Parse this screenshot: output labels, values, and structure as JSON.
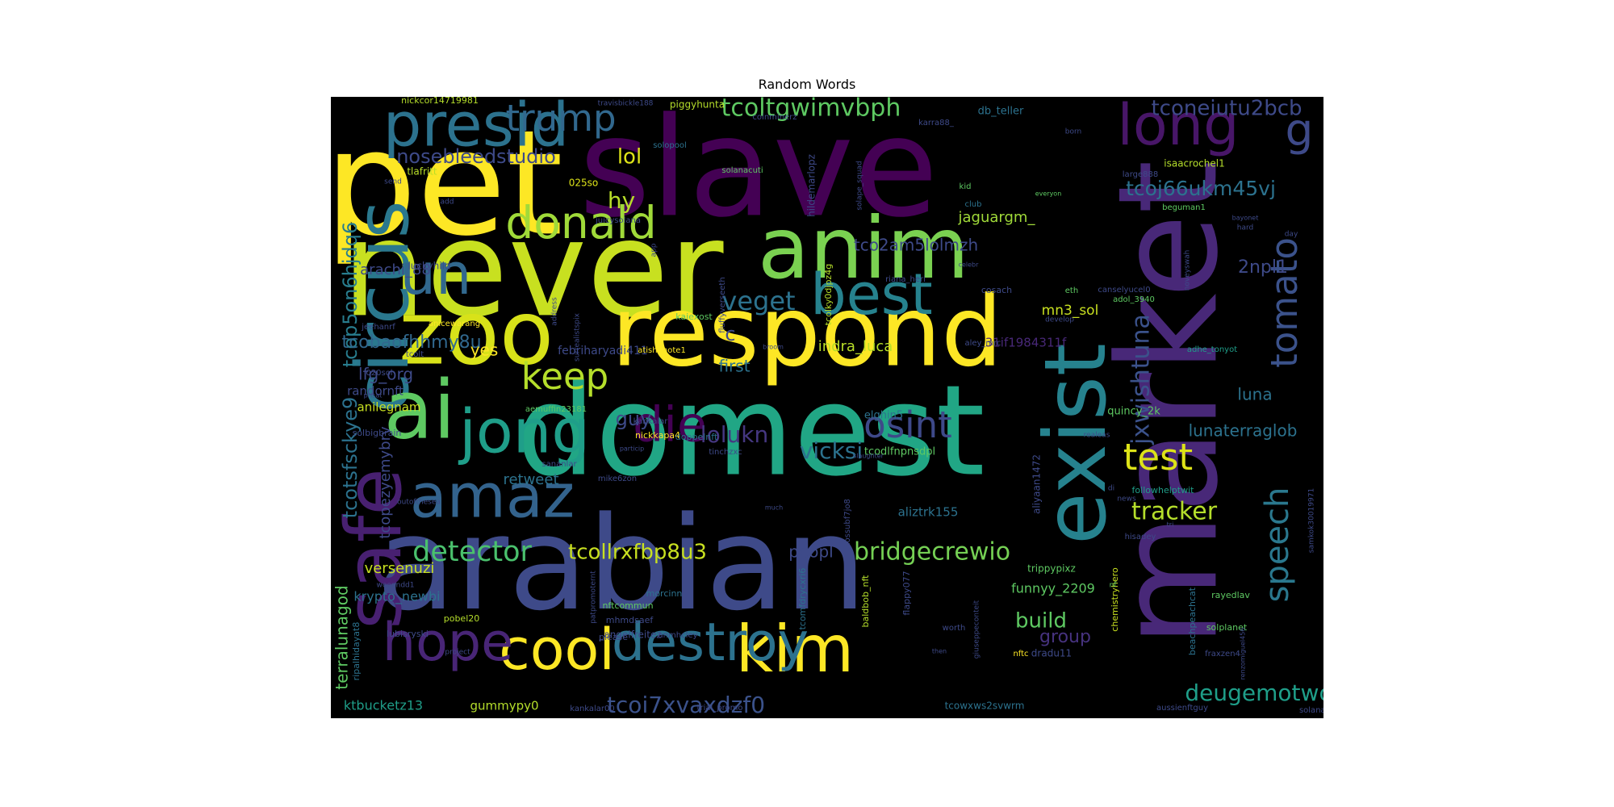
{
  "chart_data": {
    "type": "wordcloud",
    "title": "Random Words",
    "background": "#000000",
    "colormap": "viridis",
    "words": [
      {
        "text": "slave",
        "weight": 100,
        "color": "#440154"
      },
      {
        "text": "pet",
        "weight": 98,
        "color": "#fde725"
      },
      {
        "text": "never",
        "weight": 96,
        "color": "#c8e020"
      },
      {
        "text": "market",
        "weight": 95,
        "color": "#482878"
      },
      {
        "text": "domest",
        "weight": 94,
        "color": "#21a685"
      },
      {
        "text": "arabian",
        "weight": 93,
        "color": "#3e4a89"
      },
      {
        "text": "respond",
        "weight": 80,
        "color": "#fde725"
      },
      {
        "text": "zoo",
        "weight": 76,
        "color": "#d8e219"
      },
      {
        "text": "exist",
        "weight": 74,
        "color": "#26828e"
      },
      {
        "text": "anim",
        "weight": 70,
        "color": "#7ad151"
      },
      {
        "text": "circus",
        "weight": 68,
        "color": "#2a788e"
      },
      {
        "text": "ai",
        "weight": 66,
        "color": "#5ec962"
      },
      {
        "text": "safe",
        "weight": 64,
        "color": "#482071"
      },
      {
        "text": "presid",
        "weight": 60,
        "color": "#2c728e"
      },
      {
        "text": "amaz",
        "weight": 58,
        "color": "#33638d"
      },
      {
        "text": "cool",
        "weight": 56,
        "color": "#fde725"
      },
      {
        "text": "kim",
        "weight": 56,
        "color": "#fde725"
      },
      {
        "text": "destroy",
        "weight": 55,
        "color": "#2c728e"
      },
      {
        "text": "jong",
        "weight": 55,
        "color": "#1f9e89"
      },
      {
        "text": "long",
        "weight": 53,
        "color": "#481668"
      },
      {
        "text": "un",
        "weight": 50,
        "color": "#31688e"
      },
      {
        "text": "best",
        "weight": 50,
        "color": "#26828e"
      },
      {
        "text": "hope",
        "weight": 48,
        "color": "#482576"
      },
      {
        "text": "donald",
        "weight": 46,
        "color": "#a0da39"
      },
      {
        "text": "die",
        "weight": 46,
        "color": "#440154"
      },
      {
        "text": "trump",
        "weight": 42,
        "color": "#31688e"
      },
      {
        "text": "keep",
        "weight": 42,
        "color": "#b5de2b"
      },
      {
        "text": "test",
        "weight": 40,
        "color": "#dde318"
      },
      {
        "text": "tomato",
        "weight": 40,
        "color": "#3b528b"
      },
      {
        "text": "osint",
        "weight": 38,
        "color": "#3e4989"
      },
      {
        "text": "detector",
        "weight": 36,
        "color": "#4ac16d"
      },
      {
        "text": "speech",
        "weight": 36,
        "color": "#2a788e"
      },
      {
        "text": "jxwishtuna",
        "weight": 32,
        "color": "#3b528b"
      },
      {
        "text": "g",
        "weight": 36,
        "color": "#3e4a89"
      },
      {
        "text": "tcoltgwimvbph",
        "weight": 28,
        "color": "#5ec962"
      },
      {
        "text": "tconeiutu2bcb",
        "weight": 26,
        "color": "#3e4a89"
      },
      {
        "text": "tcoj66ukm45vj",
        "weight": 25,
        "color": "#2c728e"
      },
      {
        "text": "nosebleedstudio",
        "weight": 24,
        "color": "#3e4a89"
      },
      {
        "text": "veget",
        "weight": 28,
        "color": "#2c728e"
      },
      {
        "text": "lolukn",
        "weight": 26,
        "color": "#453781"
      },
      {
        "text": "vicksi",
        "weight": 26,
        "color": "#2c728e"
      },
      {
        "text": "bridgecrewio",
        "weight": 27,
        "color": "#75d054"
      },
      {
        "text": "tcoi7xvaxdzf0",
        "weight": 27,
        "color": "#3b528b"
      },
      {
        "text": "deugemotwo",
        "weight": 26,
        "color": "#1f9e89"
      },
      {
        "text": "tracker",
        "weight": 26,
        "color": "#b5de2b"
      },
      {
        "text": "tcollrxfbp8u3",
        "weight": 25,
        "color": "#c8e020"
      },
      {
        "text": "tcop5on6hjdq6",
        "weight": 24,
        "color": "#287d8e"
      },
      {
        "text": "tcotsfsckye9",
        "weight": 24,
        "color": "#2c728e"
      },
      {
        "text": "terralunagod",
        "weight": 20,
        "color": "#5ec962"
      },
      {
        "text": "lol",
        "weight": 24,
        "color": "#dde318"
      },
      {
        "text": "hy",
        "weight": 22,
        "color": "#b8de29"
      },
      {
        "text": "guy",
        "weight": 22,
        "color": "#3e4a89"
      },
      {
        "text": "build",
        "weight": 24,
        "color": "#5ec962"
      },
      {
        "text": "group",
        "weight": 20,
        "color": "#46327e"
      },
      {
        "text": "luna",
        "weight": 20,
        "color": "#2c728e"
      },
      {
        "text": "lunaterraglob",
        "weight": 20,
        "color": "#2c728e"
      },
      {
        "text": "2npl1",
        "weight": 20,
        "color": "#3e4a89"
      },
      {
        "text": "tco2am5lolmzh",
        "weight": 20,
        "color": "#3e4a89"
      },
      {
        "text": "jaguargm_",
        "weight": 18,
        "color": "#a0da39"
      },
      {
        "text": "tcobaofhhmy8u",
        "weight": 20,
        "color": "#31688e"
      },
      {
        "text": "arachi_88",
        "weight": 18,
        "color": "#3e4a89"
      },
      {
        "text": "lfg_org",
        "weight": 20,
        "color": "#3e4a89"
      },
      {
        "text": "retweet",
        "weight": 18,
        "color": "#2c728e"
      },
      {
        "text": "versenuzi",
        "weight": 18,
        "color": "#c8e020"
      },
      {
        "text": "tcopezyemybrv",
        "weight": 18,
        "color": "#3e4a89"
      },
      {
        "text": "peopl",
        "weight": 18,
        "color": "#3e4a89"
      },
      {
        "text": "first",
        "weight": 18,
        "color": "#2c728e"
      },
      {
        "text": "indra_luca",
        "weight": 17,
        "color": "#b8de29"
      },
      {
        "text": "mn3_sol",
        "weight": 17,
        "color": "#c8e020"
      },
      {
        "text": "funnyy_2209",
        "weight": 16,
        "color": "#5ec962"
      },
      {
        "text": "ktbucketz13",
        "weight": 16,
        "color": "#1f9e89"
      },
      {
        "text": "krypto_newbi",
        "weight": 16,
        "color": "#2c728e"
      },
      {
        "text": "gummypy0",
        "weight": 15,
        "color": "#b5de2b"
      },
      {
        "text": "yes",
        "weight": 17,
        "color": "#fde725"
      },
      {
        "text": "randornft",
        "weight": 15,
        "color": "#3e4a89"
      },
      {
        "text": "anilegnam",
        "weight": 15,
        "color": "#c8e020"
      },
      {
        "text": "febriharyadi411",
        "weight": 14,
        "color": "#3e4a89"
      },
      {
        "text": "31if1984311f",
        "weight": 15,
        "color": "#482878"
      },
      {
        "text": "aliztrk155",
        "weight": 15,
        "color": "#2c728e"
      },
      {
        "text": "quincy_2k",
        "weight": 13,
        "color": "#5ec962"
      },
      {
        "text": "elghin5",
        "weight": 13,
        "color": "#2c728e"
      },
      {
        "text": "tcodlfnpnsdpl",
        "weight": 13,
        "color": "#5ec962"
      },
      {
        "text": "piggyhunta",
        "weight": 12,
        "color": "#b5de2b"
      },
      {
        "text": "db_teller",
        "weight": 13,
        "color": "#2c728e"
      },
      {
        "text": "isaacrochel1",
        "weight": 12,
        "color": "#b5de2b"
      },
      {
        "text": "nickcor14719981",
        "weight": 11,
        "color": "#b5de2b"
      },
      {
        "text": "hildemarlopz",
        "weight": 12,
        "color": "#3e4a89"
      },
      {
        "text": "tlafritt",
        "weight": 12,
        "color": "#b8de29"
      },
      {
        "text": "luckyhild",
        "weight": 12,
        "color": "#3e4a89"
      },
      {
        "text": "025so",
        "weight": 12,
        "color": "#dde318"
      },
      {
        "text": "solbigbrain",
        "weight": 11,
        "color": "#3e4a89"
      },
      {
        "text": "nickkapa4",
        "weight": 11,
        "color": "#fde725"
      },
      {
        "text": "doppelnft",
        "weight": 11,
        "color": "#2c728e"
      },
      {
        "text": "speedbot",
        "weight": 0,
        "color": "#000000"
      },
      {
        "text": "aliyaan1472",
        "weight": 12,
        "color": "#3e4a89"
      },
      {
        "text": "followhelptwit",
        "weight": 11,
        "color": "#1f9e89"
      },
      {
        "text": "kaiexost",
        "weight": 11,
        "color": "#5ec962"
      },
      {
        "text": "anmhcley",
        "weight": 10,
        "color": "#3e4a89"
      },
      {
        "text": "_angelfreitez",
        "weight": 12,
        "color": "#3e4a89"
      },
      {
        "text": "morcinn",
        "weight": 11,
        "color": "#2c728e"
      },
      {
        "text": "nftcommun",
        "weight": 11,
        "color": "#5ec962"
      },
      {
        "text": "mhmdsaef",
        "weight": 11,
        "color": "#3e4a89"
      },
      {
        "text": "pobel20",
        "weight": 11,
        "color": "#b5de2b"
      },
      {
        "text": "lubisryski",
        "weight": 11,
        "color": "#3e4a89"
      },
      {
        "text": "please",
        "weight": 11,
        "color": "#3e4a89"
      },
      {
        "text": "kankalar00",
        "weight": 10,
        "color": "#3e4a89"
      },
      {
        "text": "trial_promo",
        "weight": 10,
        "color": "#3e4a89"
      },
      {
        "text": "tcowxws2svwrm",
        "weight": 12,
        "color": "#2c728e"
      },
      {
        "text": "trippypixz",
        "weight": 12,
        "color": "#5ec962"
      },
      {
        "text": "rayedlav",
        "weight": 11,
        "color": "#5ec962"
      },
      {
        "text": "solplanet",
        "weight": 11,
        "color": "#5ec962"
      },
      {
        "text": "fraxzen4",
        "weight": 10,
        "color": "#3e4a89"
      },
      {
        "text": "dradu11",
        "weight": 12,
        "color": "#3e4a89"
      },
      {
        "text": "nftc",
        "weight": 10,
        "color": "#fde725"
      },
      {
        "text": "worth",
        "weight": 10,
        "color": "#3e4a89"
      },
      {
        "text": "hisadey",
        "weight": 10,
        "color": "#3e4a89"
      },
      {
        "text": "aussienftguy",
        "weight": 10,
        "color": "#3e4a89"
      },
      {
        "text": "solanakiddo",
        "weight": 10,
        "color": "#3e4a89"
      },
      {
        "text": "baldbob_nft",
        "weight": 11,
        "color": "#b5de2b"
      },
      {
        "text": "flappy077",
        "weight": 11,
        "color": "#3e4a89"
      },
      {
        "text": "tcomfdrycxri6",
        "weight": 11,
        "color": "#2c728e"
      },
      {
        "text": "chemistryhero",
        "weight": 11,
        "color": "#c8e020"
      },
      {
        "text": "beachpeachcat",
        "weight": 11,
        "color": "#2c728e"
      },
      {
        "text": "ripalhidayat8",
        "weight": 11,
        "color": "#2c728e"
      },
      {
        "text": "cosach",
        "weight": 11,
        "color": "#3e4a89"
      },
      {
        "text": "canselyucel0",
        "weight": 10,
        "color": "#3e4a89"
      },
      {
        "text": "adol_3940",
        "weight": 10,
        "color": "#5ec962"
      },
      {
        "text": "adhe_tonyot",
        "weight": 10,
        "color": "#1f9e89"
      },
      {
        "text": "riana_heri",
        "weight": 10,
        "color": "#3e4a89"
      },
      {
        "text": "aley_mrc",
        "weight": 10,
        "color": "#3e4a89"
      },
      {
        "text": "atishdhote1",
        "weight": 10,
        "color": "#fde725"
      },
      {
        "text": "aemuffin23181",
        "weight": 10,
        "color": "#5ec962"
      },
      {
        "text": "kankalar",
        "weight": 10,
        "color": "#3e4a89"
      },
      {
        "text": "tinchzxc",
        "weight": 10,
        "color": "#3e4a89"
      },
      {
        "text": "sananlar",
        "weight": 10,
        "color": "#3e4a89"
      },
      {
        "text": "fluffyverseeth",
        "weight": 10,
        "color": "#3e4a89"
      },
      {
        "text": "tcolky0djpz4g",
        "weight": 11,
        "color": "#b5de2b"
      },
      {
        "text": "anicewarang",
        "weight": 10,
        "color": "#fde725"
      },
      {
        "text": "jeehanrf",
        "weight": 10,
        "color": "#3e4a89"
      },
      {
        "text": "tcolt",
        "weight": 10,
        "color": "#3e4a89"
      },
      {
        "text": "020sol",
        "weight": 10,
        "color": "#3e4a89"
      },
      {
        "text": "juicysolana",
        "weight": 10,
        "color": "#3e4a89"
      },
      {
        "text": "solopool",
        "weight": 10,
        "color": "#2c728e"
      },
      {
        "text": "solanacuti",
        "weight": 10,
        "color": "#5ec962"
      },
      {
        "text": "coinminerz",
        "weight": 10,
        "color": "#3e4a89"
      },
      {
        "text": "travisbickle188",
        "weight": 9,
        "color": "#3e4a89"
      },
      {
        "text": "karra88_",
        "weight": 10,
        "color": "#3e4a89"
      },
      {
        "text": "large888",
        "weight": 10,
        "color": "#3e4a89"
      },
      {
        "text": "beguman1",
        "weight": 10,
        "color": "#5ec962"
      },
      {
        "text": "kid",
        "weight": 10,
        "color": "#5ec962"
      },
      {
        "text": "club",
        "weight": 10,
        "color": "#2c728e"
      },
      {
        "text": "develop",
        "weight": 9,
        "color": "#3e4a89"
      },
      {
        "text": "eth",
        "weight": 10,
        "color": "#5ec962"
      },
      {
        "text": "news",
        "weight": 9,
        "color": "#3e4a89"
      },
      {
        "text": "di",
        "weight": 9,
        "color": "#3e4a89"
      },
      {
        "text": "nf",
        "weight": 9,
        "color": "#5ec962"
      },
      {
        "text": "c",
        "weight": 22,
        "color": "#3e4a89"
      },
      {
        "text": "send",
        "weight": 9,
        "color": "#3e4a89"
      },
      {
        "text": "add",
        "weight": 9,
        "color": "#3e4a89"
      },
      {
        "text": "app",
        "weight": 9,
        "color": "#3e4a89"
      },
      {
        "text": "address",
        "weight": 9,
        "color": "#3e4a89"
      },
      {
        "text": "hard",
        "weight": 9,
        "color": "#3e4a89"
      },
      {
        "text": "day",
        "weight": 9,
        "color": "#3e4a89"
      },
      {
        "text": "everyon",
        "weight": 8,
        "color": "#5ec962"
      },
      {
        "text": "project",
        "weight": 9,
        "color": "#3e4a89"
      },
      {
        "text": "outofthesea",
        "weight": 9,
        "color": "#3e4a89"
      },
      {
        "text": "realeas",
        "weight": 9,
        "color": "#3e4a89"
      },
      {
        "text": "bayonet",
        "weight": 8,
        "color": "#3e4a89"
      },
      {
        "text": "prisat",
        "weight": 8,
        "color": "#3e4a89"
      },
      {
        "text": "broom",
        "weight": 8,
        "color": "#3e4a89"
      },
      {
        "text": "much",
        "weight": 8,
        "color": "#3e4a89"
      },
      {
        "text": "then",
        "weight": 8,
        "color": "#3e4a89"
      },
      {
        "text": "tri",
        "weight": 8,
        "color": "#3e4a89"
      },
      {
        "text": "particip",
        "weight": 8,
        "color": "#3e4a89"
      },
      {
        "text": "celebr",
        "weight": 8,
        "color": "#3e4a89"
      },
      {
        "text": "slaughter",
        "weight": 8,
        "color": "#3e4a89"
      },
      {
        "text": "born",
        "weight": 9,
        "color": "#3e4a89"
      },
      {
        "text": "solape_squad",
        "weight": 9,
        "color": "#3e4a89"
      },
      {
        "text": "surrealistspix",
        "weight": 9,
        "color": "#3e4a89"
      },
      {
        "text": "giuseppeconteit",
        "weight": 9,
        "color": "#3e4a89"
      },
      {
        "text": "pobazamm",
        "weight": 0,
        "color": "#000000"
      },
      {
        "text": "patpromoternt",
        "weight": 9,
        "color": "#3e4a89"
      },
      {
        "text": "tcossubf7jo8",
        "weight": 10,
        "color": "#3e4a89"
      },
      {
        "text": "renzomiguel456",
        "weight": 8,
        "color": "#3e4a89"
      },
      {
        "text": "weenndd1",
        "weight": 9,
        "color": "#3e4a89"
      },
      {
        "text": "samkok30019971",
        "weight": 9,
        "color": "#3e4a89"
      },
      {
        "text": "noveyswah",
        "weight": 9,
        "color": "#3e4a89"
      },
      {
        "text": "mike6zon",
        "weight": 10,
        "color": "#3e4a89"
      }
    ]
  }
}
